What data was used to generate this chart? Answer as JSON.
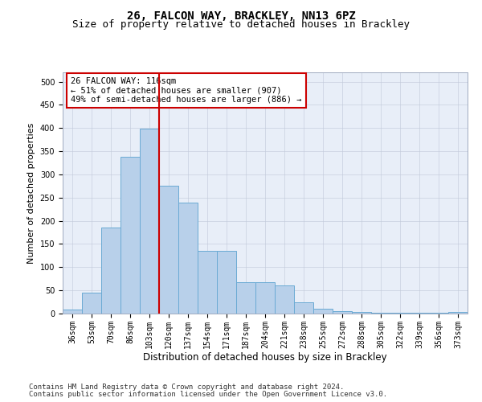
{
  "title1": "26, FALCON WAY, BRACKLEY, NN13 6PZ",
  "title2": "Size of property relative to detached houses in Brackley",
  "xlabel": "Distribution of detached houses by size in Brackley",
  "ylabel": "Number of detached properties",
  "categories": [
    "36sqm",
    "53sqm",
    "70sqm",
    "86sqm",
    "103sqm",
    "120sqm",
    "137sqm",
    "154sqm",
    "171sqm",
    "187sqm",
    "204sqm",
    "221sqm",
    "238sqm",
    "255sqm",
    "272sqm",
    "288sqm",
    "305sqm",
    "322sqm",
    "339sqm",
    "356sqm",
    "373sqm"
  ],
  "values": [
    8,
    45,
    185,
    338,
    398,
    275,
    240,
    135,
    135,
    68,
    68,
    60,
    25,
    10,
    5,
    3,
    2,
    2,
    2,
    2,
    3
  ],
  "bar_color": "#b8d0ea",
  "bar_edge_color": "#6aaad4",
  "vline_x_index": 4.5,
  "vline_color": "#cc0000",
  "annotation_text": "26 FALCON WAY: 116sqm\n← 51% of detached houses are smaller (907)\n49% of semi-detached houses are larger (886) →",
  "annotation_box_color": "#ffffff",
  "annotation_box_edge_color": "#cc0000",
  "ylim": [
    0,
    520
  ],
  "yticks": [
    0,
    50,
    100,
    150,
    200,
    250,
    300,
    350,
    400,
    450,
    500
  ],
  "background_color": "#e8eef8",
  "footer1": "Contains HM Land Registry data © Crown copyright and database right 2024.",
  "footer2": "Contains public sector information licensed under the Open Government Licence v3.0.",
  "title1_fontsize": 10,
  "title2_fontsize": 9,
  "xlabel_fontsize": 8.5,
  "ylabel_fontsize": 8,
  "tick_fontsize": 7,
  "annotation_fontsize": 7.5,
  "footer_fontsize": 6.5
}
